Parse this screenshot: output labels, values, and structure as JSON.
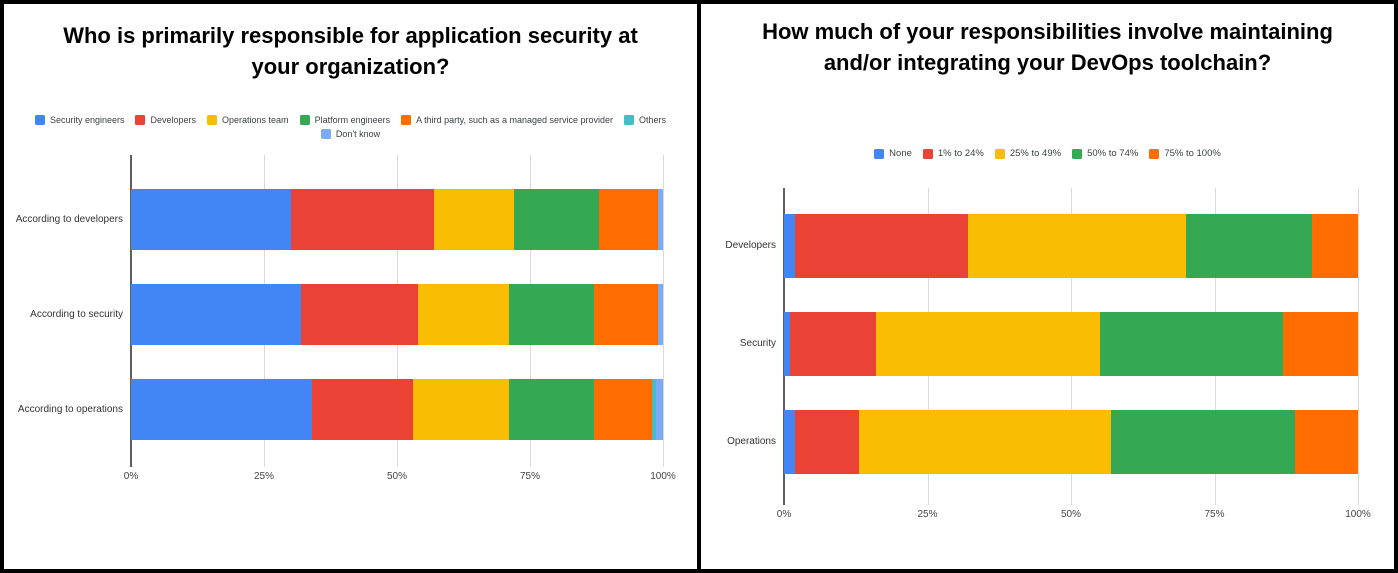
{
  "chart_data": [
    {
      "type": "bar",
      "stacked": true,
      "orientation": "horizontal",
      "title": "Who is primarily responsible for application security at your organization?",
      "categories": [
        "According to developers",
        "According to security",
        "According to operations"
      ],
      "series": [
        {
          "name": "Security engineers",
          "color": "#4285F4",
          "values": [
            30,
            32,
            34
          ]
        },
        {
          "name": "Developers",
          "color": "#EA4335",
          "values": [
            27,
            22,
            19
          ]
        },
        {
          "name": "Operations team",
          "color": "#FBBC04",
          "values": [
            15,
            17,
            18
          ]
        },
        {
          "name": "Platform engineers",
          "color": "#34A853",
          "values": [
            16,
            16,
            16
          ]
        },
        {
          "name": "A third party, such as a managed service provider",
          "color": "#FF6D00",
          "values": [
            11,
            12,
            11
          ]
        },
        {
          "name": "Others",
          "color": "#46BDC6",
          "values": [
            0,
            0,
            0.6
          ]
        },
        {
          "name": "Don't know",
          "color": "#7BAAF7",
          "values": [
            1,
            1,
            1.4
          ]
        }
      ],
      "legend_rows": [
        [
          0,
          1,
          2,
          3,
          4,
          5
        ],
        [
          6
        ]
      ],
      "x_ticks": [
        "0%",
        "25%",
        "50%",
        "75%",
        "100%"
      ],
      "xlim": [
        0,
        100
      ],
      "legend_position": "top",
      "grid": true
    },
    {
      "type": "bar",
      "stacked": true,
      "orientation": "horizontal",
      "title": "How much of your responsibilities involve maintaining and/or integrating your DevOps toolchain?",
      "categories": [
        "Developers",
        "Security",
        "Operations"
      ],
      "series": [
        {
          "name": "None",
          "color": "#4285F4",
          "values": [
            2,
            1,
            2
          ]
        },
        {
          "name": "1% to 24%",
          "color": "#EA4335",
          "values": [
            30,
            15,
            11
          ]
        },
        {
          "name": "25% to 49%",
          "color": "#FBBC04",
          "values": [
            38,
            39,
            44
          ]
        },
        {
          "name": "50% to 74%",
          "color": "#34A853",
          "values": [
            22,
            32,
            32
          ]
        },
        {
          "name": "75% to 100%",
          "color": "#FF6D00",
          "values": [
            8,
            13,
            11
          ]
        }
      ],
      "legend_rows": [
        [
          0,
          1,
          2,
          3,
          4
        ]
      ],
      "x_ticks": [
        "0%",
        "25%",
        "50%",
        "75%",
        "100%"
      ],
      "xlim": [
        0,
        100
      ],
      "legend_position": "top",
      "grid": true
    }
  ]
}
